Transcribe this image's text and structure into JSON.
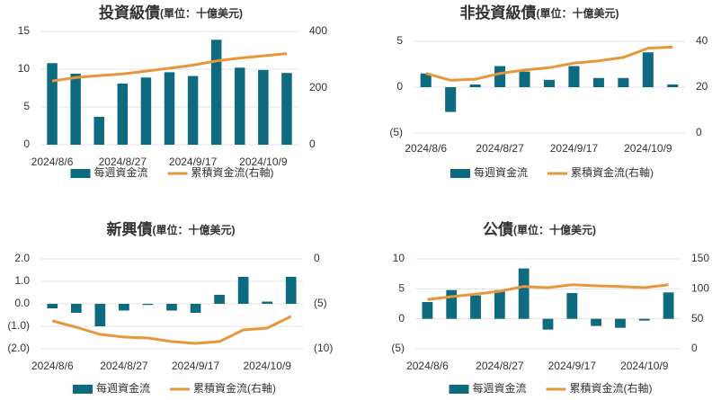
{
  "chart_data": [
    {
      "type": "bar_line",
      "title": "投資級債",
      "subtitle": "(單位：十億美元)",
      "categories": [
        "2024/8/6",
        null,
        null,
        "2024/8/27",
        null,
        null,
        "2024/9/17",
        null,
        null,
        "2024/10/9",
        null
      ],
      "series": [
        {
          "name": "每週資金流",
          "type": "bar",
          "color": "#0e6b7f",
          "values": [
            10.8,
            9.4,
            3.7,
            8.1,
            8.9,
            9.6,
            9.1,
            13.9,
            10.2,
            9.9,
            9.5
          ]
        },
        {
          "name": "累積資金流(右軸)",
          "type": "line",
          "axis": "y2",
          "color": "#e8963a",
          "values": [
            225,
            237,
            244,
            250,
            260,
            270,
            281,
            296,
            306,
            314,
            322
          ]
        }
      ],
      "ylim": [
        0,
        15
      ],
      "yticks": [
        0,
        5,
        10,
        15
      ],
      "y2lim": [
        0,
        400
      ],
      "y2ticks": [
        0,
        200,
        400
      ],
      "grid": true,
      "negative_label_color": "#c00000",
      "legend": "bottom"
    },
    {
      "type": "bar_line",
      "title": "非投資級債",
      "subtitle": "(單位：十億美元)",
      "categories": [
        "2024/8/6",
        null,
        null,
        "2024/8/27",
        null,
        null,
        "2024/9/17",
        null,
        null,
        "2024/10/9",
        null
      ],
      "series": [
        {
          "name": "每週資金流",
          "type": "bar",
          "color": "#0e6b7f",
          "values": [
            1.5,
            -2.7,
            0.3,
            2.3,
            1.7,
            0.8,
            2.3,
            1.0,
            1.0,
            3.8,
            0.3
          ]
        },
        {
          "name": "累積資金流(右軸)",
          "type": "line",
          "axis": "y2",
          "color": "#e8963a",
          "values": [
            26,
            23,
            23.5,
            26,
            27.5,
            28.5,
            30.5,
            31.5,
            33,
            37,
            37.5
          ]
        }
      ],
      "ylim": [
        -5,
        5
      ],
      "yticks": [
        {
          "value": -5,
          "label": "(5)"
        },
        0,
        5
      ],
      "y2lim": [
        0,
        40
      ],
      "y2ticks": [
        0,
        20,
        40
      ],
      "grid": true,
      "negative_label_color": "#c00000",
      "legend": "bottom"
    },
    {
      "type": "bar_line",
      "title": "新興債",
      "subtitle": "(單位：十億美元)",
      "categories": [
        "2024/8/6",
        null,
        null,
        "2024/8/27",
        null,
        null,
        "2024/9/17",
        null,
        null,
        "2024/10/9",
        null
      ],
      "series": [
        {
          "name": "每週資金流",
          "type": "bar",
          "color": "#0e6b7f",
          "values": [
            -0.2,
            -0.4,
            -1.0,
            -0.3,
            -0.05,
            -0.3,
            -0.4,
            0.4,
            1.2,
            0.1,
            1.2
          ]
        },
        {
          "name": "累積資金流(右軸)",
          "type": "line",
          "axis": "y2",
          "color": "#e8963a",
          "values": [
            -6.9,
            -7.6,
            -8.4,
            -8.7,
            -8.8,
            -9.2,
            -9.4,
            -9.2,
            -7.9,
            -7.7,
            -6.4
          ]
        }
      ],
      "ylim": [
        -2,
        2
      ],
      "yticks": [
        {
          "value": -2,
          "label": "(2.0)"
        },
        {
          "value": -1,
          "label": "(1.0)"
        },
        {
          "value": 0,
          "label": "0.0"
        },
        {
          "value": 1,
          "label": "1.0"
        },
        {
          "value": 2,
          "label": "2.0"
        }
      ],
      "y2lim": [
        -10,
        0
      ],
      "y2ticks": [
        {
          "value": -10,
          "label": "(10)"
        },
        {
          "value": -5,
          "label": "(5)"
        },
        0
      ],
      "grid": true,
      "negative_label_color": "#c00000",
      "legend": "bottom"
    },
    {
      "type": "bar_line",
      "title": "公債",
      "subtitle": "(單位：十億美元)",
      "categories": [
        "2024/8/6",
        null,
        null,
        "2024/8/27",
        null,
        null,
        "2024/9/17",
        null,
        null,
        "2024/10/9",
        null
      ],
      "series": [
        {
          "name": "每週資金流",
          "type": "bar",
          "color": "#0e6b7f",
          "values": [
            2.8,
            4.8,
            3.9,
            4.8,
            8.4,
            -1.8,
            4.3,
            -1.2,
            -1.5,
            -0.3,
            4.4
          ]
        },
        {
          "name": "累積資金流(右軸)",
          "type": "line",
          "axis": "y2",
          "color": "#e8963a",
          "values": [
            82,
            87,
            91,
            96,
            104,
            102,
            107,
            105,
            104,
            102,
            107
          ]
        }
      ],
      "ylim": [
        -5,
        10
      ],
      "yticks": [
        {
          "value": -5,
          "label": "(5)"
        },
        0,
        5,
        10
      ],
      "y2lim": [
        0,
        150
      ],
      "y2ticks": [
        0,
        50,
        100,
        150
      ],
      "grid": true,
      "negative_label_color": "#c00000",
      "legend": "bottom"
    }
  ]
}
